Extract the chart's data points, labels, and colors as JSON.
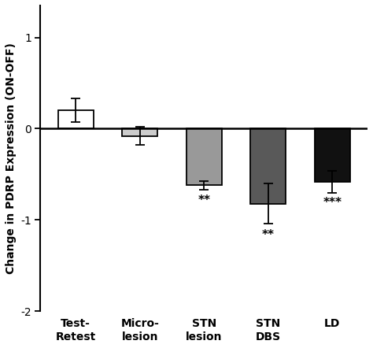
{
  "categories": [
    "Test-\nRetest",
    "Micro-\nlesion",
    "STN\nlesion",
    "STN\nDBS",
    "LD"
  ],
  "values": [
    0.2,
    -0.08,
    -0.62,
    -0.82,
    -0.58
  ],
  "errors": [
    0.13,
    0.1,
    0.05,
    0.22,
    0.12
  ],
  "bar_colors": [
    "#ffffff",
    "#cccccc",
    "#999999",
    "#595959",
    "#111111"
  ],
  "bar_edgecolors": [
    "#000000",
    "#000000",
    "#000000",
    "#000000",
    "#000000"
  ],
  "significance": [
    "",
    "",
    "**",
    "**",
    "***"
  ],
  "sig_y": [
    null,
    null,
    -0.72,
    -1.1,
    -0.75
  ],
  "ylabel": "Change in PDRP Expression (ON-OFF)",
  "ylim": [
    -2.0,
    1.35
  ],
  "yticks": [
    -2,
    -1,
    0,
    1
  ],
  "bar_width": 0.55,
  "figsize": [
    4.74,
    4.42
  ],
  "dpi": 100
}
